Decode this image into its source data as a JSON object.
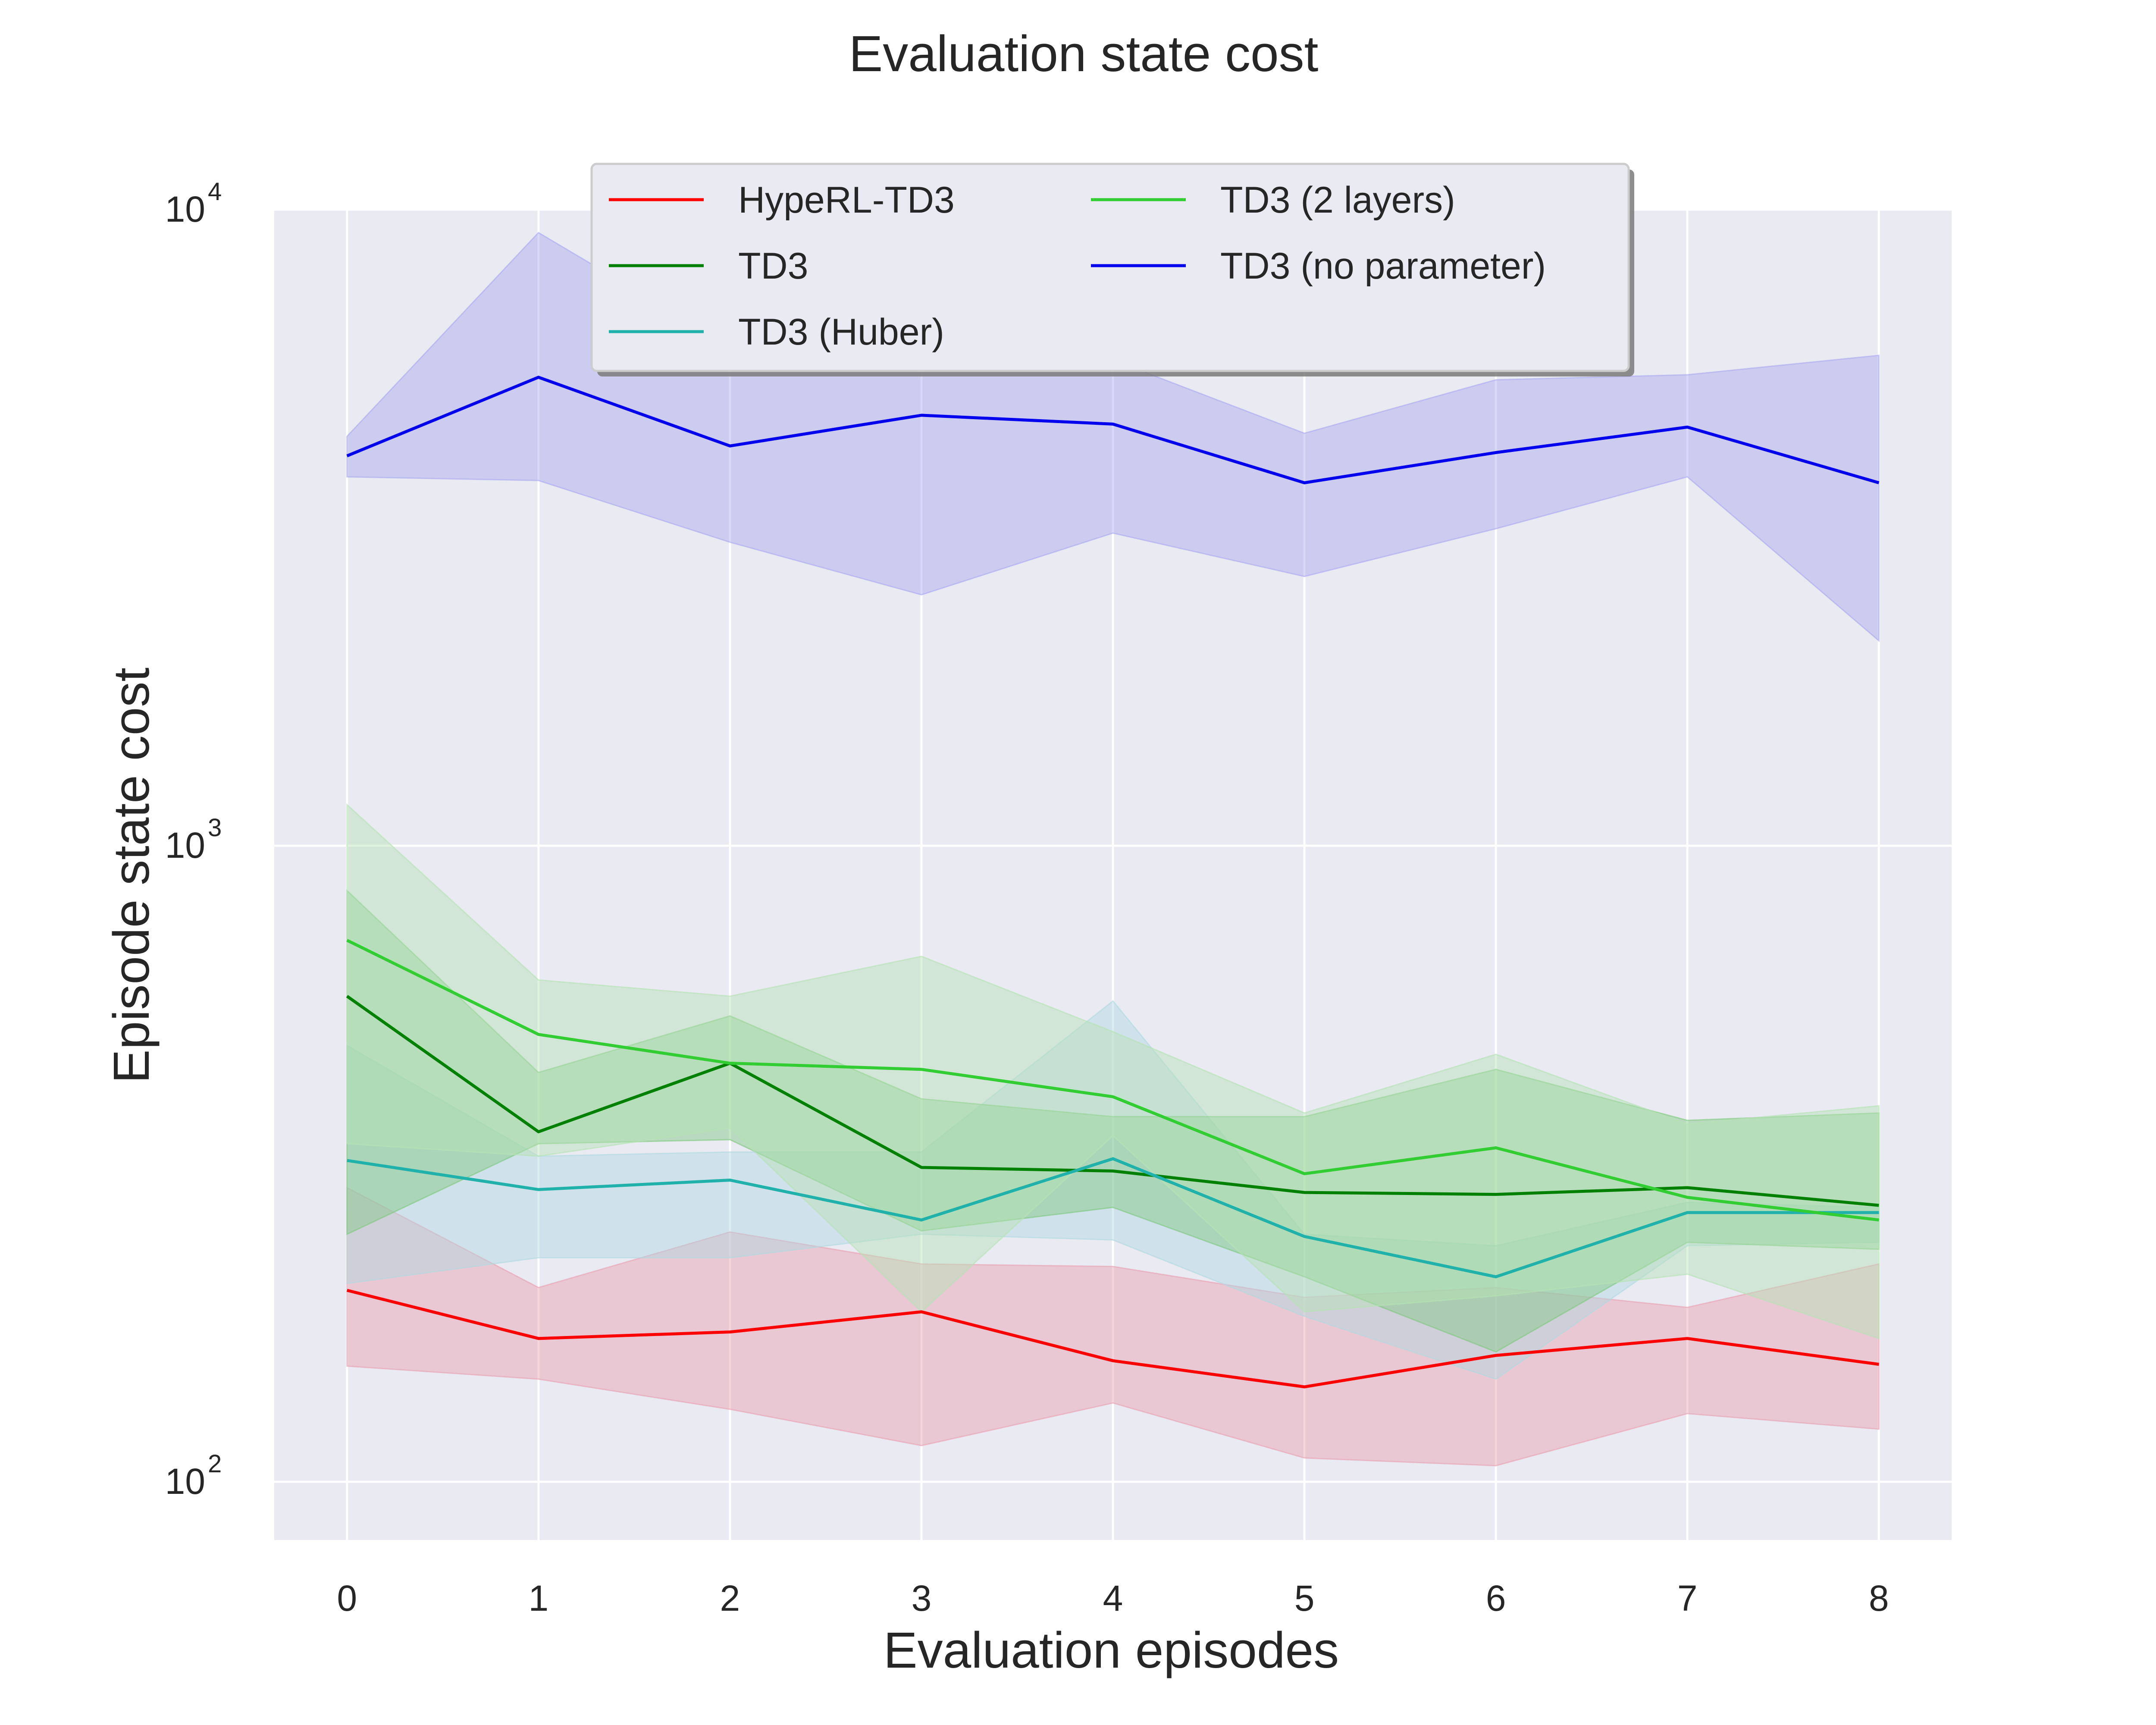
{
  "chart_data": {
    "type": "line",
    "title": "Evaluation state cost",
    "xlabel": "Evaluation episodes",
    "ylabel": "Episode state cost",
    "yscale": "log",
    "xlim": [
      -0.38,
      8.38
    ],
    "ylim": [
      81,
      10000
    ],
    "x": [
      0,
      1,
      2,
      3,
      4,
      5,
      6,
      7,
      8
    ],
    "x_ticks": [
      0,
      1,
      2,
      3,
      4,
      5,
      6,
      7,
      8
    ],
    "x_tick_labels": [
      "0",
      "1",
      "2",
      "3",
      "4",
      "5",
      "6",
      "7",
      "8"
    ],
    "y_ticks": [
      {
        "value": 100,
        "base": "10",
        "exp": "2"
      },
      {
        "value": 1000,
        "base": "10",
        "exp": "3"
      },
      {
        "value": 10000,
        "base": "10",
        "exp": "4"
      }
    ],
    "grid": true,
    "legend_position": "top-center",
    "series": [
      {
        "name": "HypeRL-TD3",
        "color": "#ff0000",
        "fill_color": "#e8a0b0",
        "values": [
          200,
          168,
          172,
          185,
          155,
          141,
          158,
          168,
          153
        ],
        "lower": [
          152,
          145,
          130,
          114,
          133,
          109,
          106,
          128,
          121
        ],
        "upper": [
          290,
          202,
          247,
          220,
          218,
          195,
          202,
          188,
          220
        ]
      },
      {
        "name": "TD3",
        "color": "#008000",
        "fill_color": "#7ec87e",
        "values": [
          580,
          355,
          455,
          312,
          308,
          285,
          283,
          290,
          272
        ],
        "lower": [
          245,
          340,
          345,
          248,
          270,
          210,
          160,
          238,
          232
        ],
        "upper": [
          850,
          440,
          540,
          400,
          375,
          375,
          445,
          370,
          380
        ]
      },
      {
        "name": "TD3 (Huber)",
        "color": "#20b2aa",
        "fill_color": "#b0d8e0",
        "values": [
          320,
          288,
          298,
          258,
          322,
          243,
          210,
          265,
          265
        ],
        "lower": [
          205,
          225,
          225,
          245,
          240,
          182,
          145,
          235,
          238
        ],
        "upper": [
          485,
          325,
          330,
          330,
          570,
          245,
          235,
          275,
          270
        ]
      },
      {
        "name": "TD3 (2 layers)",
        "color": "#32cd32",
        "fill_color": "#b6e3b6",
        "values": [
          710,
          505,
          455,
          445,
          403,
          305,
          335,
          280,
          258
        ],
        "lower": [
          340,
          325,
          360,
          185,
          350,
          185,
          196,
          212,
          168
        ],
        "upper": [
          1160,
          615,
          580,
          670,
          510,
          380,
          470,
          365,
          390
        ]
      },
      {
        "name": "TD3 (no parameter)",
        "color": "#0000ee",
        "fill_color": "#a8a8f0",
        "values": [
          4100,
          5450,
          4250,
          4750,
          4600,
          3720,
          4150,
          4550,
          3720
        ],
        "lower": [
          3800,
          3750,
          3000,
          2480,
          3100,
          2650,
          3150,
          3800,
          2100
        ],
        "upper": [
          4400,
          9200,
          6100,
          6300,
          5800,
          4450,
          5400,
          5500,
          5900
        ]
      }
    ]
  }
}
